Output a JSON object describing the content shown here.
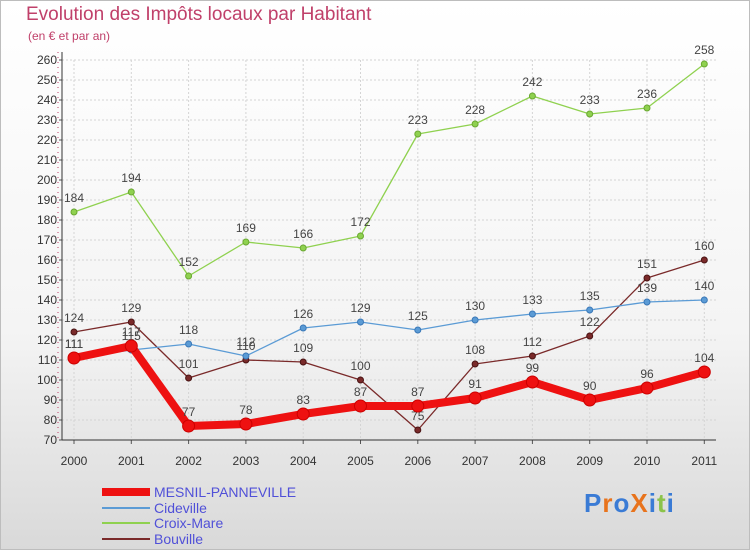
{
  "title": "Evolution des Impôts locaux par Habitant",
  "subtitle": "(en € et par an)",
  "logo": {
    "text": "ProXiti",
    "letter_colors": [
      "#3a7bd5",
      "#e8731c",
      "#3a7bd5",
      "#e8731c",
      "#3a7bd5",
      "#8bc34a",
      "#3a7bd5"
    ]
  },
  "chart_data": {
    "type": "line",
    "x": [
      "2000",
      "2001",
      "2002",
      "2003",
      "2004",
      "2005",
      "2006",
      "2007",
      "2008",
      "2009",
      "2010",
      "2011"
    ],
    "ylim": [
      70,
      260
    ],
    "yticks": [
      70,
      80,
      90,
      100,
      110,
      120,
      130,
      140,
      150,
      160,
      170,
      180,
      190,
      200,
      210,
      220,
      230,
      240,
      250,
      260
    ],
    "grid": true,
    "legend_position": "bottom-left",
    "series": [
      {
        "name": "MESNIL-PANNEVILLE",
        "color": "#ee1111",
        "values": [
          111,
          117,
          77,
          78,
          83,
          87,
          87,
          91,
          99,
          90,
          96,
          104
        ]
      },
      {
        "name": "Cideville",
        "color": "#5b9bd5",
        "values": [
          111,
          115,
          118,
          112,
          126,
          129,
          125,
          130,
          133,
          135,
          139,
          140
        ]
      },
      {
        "name": "Croix-Mare",
        "color": "#8fd14f",
        "values": [
          184,
          194,
          152,
          169,
          166,
          172,
          223,
          228,
          242,
          233,
          236,
          258
        ]
      },
      {
        "name": "Bouville",
        "color": "#7a2a2a",
        "values": [
          124,
          129,
          101,
          110,
          109,
          100,
          75,
          108,
          112,
          122,
          151,
          160
        ]
      }
    ]
  }
}
